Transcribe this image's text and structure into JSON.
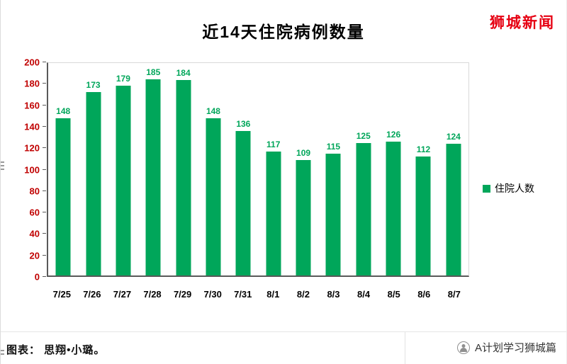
{
  "brand": {
    "top_right": "狮城新闻",
    "bottom_right": "A计划学习狮城篇"
  },
  "footer": {
    "credit": "图表： 思翔•小璐。"
  },
  "chart_data": {
    "type": "bar",
    "title": "近14天住院病例数量",
    "categories": [
      "7/25",
      "7/26",
      "7/27",
      "7/28",
      "7/29",
      "7/30",
      "7/31",
      "8/1",
      "8/2",
      "8/3",
      "8/4",
      "8/5",
      "8/6",
      "8/7"
    ],
    "values": [
      148,
      173,
      179,
      185,
      184,
      148,
      136,
      117,
      109,
      115,
      125,
      126,
      112,
      124
    ],
    "series_name": "住院人数",
    "legend": [
      "住院人数"
    ],
    "legend_position": "right",
    "xlabel": "",
    "ylabel": "",
    "ylim": [
      0,
      200
    ],
    "ytick_step": 20,
    "grid": false,
    "colors": {
      "bar": "#00a65a",
      "value_label": "#00a65a",
      "y_tick": "#c00000",
      "x_tick": "#000000",
      "brand_red": "#e60012"
    }
  }
}
